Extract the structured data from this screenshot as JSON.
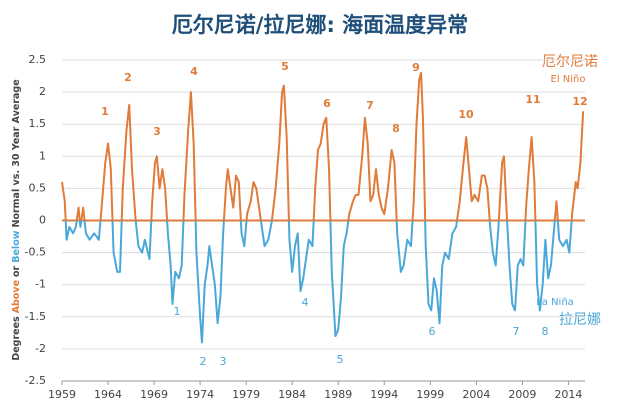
{
  "chart_data": {
    "type": "line",
    "title": "厄尔尼诺/拉尼娜: 海面温度异常",
    "y_label_parts": [
      "Degrees",
      "Above",
      "or",
      "Below",
      "Normal vs. 30 Year Average"
    ],
    "positive_label_cn": "厄尔尼诺",
    "positive_label_en": "El Niño",
    "negative_label_en": "La Niña",
    "negative_label_cn": "拉尼娜",
    "el_nino_events": [
      "1",
      "2",
      "3",
      "4",
      "5",
      "6",
      "7",
      "8",
      "9",
      "10",
      "11",
      "12"
    ],
    "la_nina_events": [
      "1",
      "2",
      "3",
      "4",
      "5",
      "6",
      "7",
      "8"
    ],
    "positive_color": "#e07b39",
    "negative_color": "#4aa8d8",
    "title_color": "#1f4e79",
    "grid": true,
    "xlim": [
      1959,
      2015.8
    ],
    "xticks": [
      1959,
      1964,
      1969,
      1974,
      1979,
      1984,
      1989,
      1994,
      1999,
      2004,
      2009,
      2014
    ],
    "ylim": [
      -2.5,
      2.5
    ],
    "yticks": [
      2.5,
      2,
      1.5,
      1,
      0.5,
      0,
      -0.5,
      -1,
      -1.5,
      -2,
      -2.5
    ],
    "x": [
      1959.0,
      1959.3,
      1959.5,
      1959.8,
      1960.2,
      1960.5,
      1960.8,
      1961.0,
      1961.3,
      1961.6,
      1962.0,
      1962.5,
      1963.0,
      1963.3,
      1963.7,
      1964.0,
      1964.3,
      1964.6,
      1965.0,
      1965.3,
      1965.6,
      1966.0,
      1966.3,
      1966.6,
      1967.0,
      1967.3,
      1967.7,
      1968.0,
      1968.5,
      1968.8,
      1969.1,
      1969.3,
      1969.6,
      1969.9,
      1970.2,
      1970.5,
      1970.8,
      1971.0,
      1971.3,
      1971.7,
      1972.0,
      1972.3,
      1972.7,
      1973.0,
      1973.3,
      1973.6,
      1974.0,
      1974.2,
      1974.5,
      1974.8,
      1975.0,
      1975.3,
      1975.6,
      1975.9,
      1976.2,
      1976.5,
      1976.8,
      1977.0,
      1977.3,
      1977.6,
      1977.9,
      1978.2,
      1978.5,
      1978.8,
      1979.1,
      1979.5,
      1979.8,
      1980.1,
      1980.4,
      1980.7,
      1981.0,
      1981.4,
      1981.8,
      1982.2,
      1982.6,
      1982.9,
      1983.1,
      1983.4,
      1983.7,
      1984.0,
      1984.3,
      1984.6,
      1984.9,
      1985.2,
      1985.5,
      1985.8,
      1986.2,
      1986.5,
      1986.8,
      1987.1,
      1987.4,
      1987.7,
      1988.0,
      1988.3,
      1988.7,
      1989.0,
      1989.3,
      1989.6,
      1989.9,
      1990.2,
      1990.6,
      1990.9,
      1991.2,
      1991.6,
      1991.9,
      1992.2,
      1992.5,
      1992.8,
      1993.1,
      1993.4,
      1993.7,
      1994.0,
      1994.4,
      1994.8,
      1995.1,
      1995.4,
      1995.8,
      1996.1,
      1996.5,
      1996.9,
      1997.2,
      1997.5,
      1997.8,
      1998.0,
      1998.2,
      1998.5,
      1998.8,
      1999.1,
      1999.4,
      1999.7,
      2000.0,
      2000.3,
      2000.6,
      2001.0,
      2001.4,
      2001.8,
      2002.2,
      2002.6,
      2002.9,
      2003.2,
      2003.5,
      2003.8,
      2004.2,
      2004.6,
      2004.9,
      2005.2,
      2005.5,
      2005.8,
      2006.1,
      2006.4,
      2006.8,
      2007.0,
      2007.3,
      2007.6,
      2007.9,
      2008.2,
      2008.5,
      2008.8,
      2009.1,
      2009.4,
      2009.7,
      2010.0,
      2010.3,
      2010.6,
      2010.9,
      2011.2,
      2011.5,
      2011.8,
      2012.1,
      2012.4,
      2012.7,
      2013.0,
      2013.4,
      2013.8,
      2014.1,
      2014.4,
      2014.8,
      2015.0,
      2015.3,
      2015.6
    ],
    "values": [
      0.6,
      0.3,
      -0.3,
      -0.1,
      -0.2,
      -0.1,
      0.2,
      -0.1,
      0.2,
      -0.2,
      -0.3,
      -0.2,
      -0.3,
      0.2,
      0.9,
      1.2,
      0.8,
      -0.5,
      -0.8,
      -0.8,
      0.5,
      1.4,
      1.8,
      0.8,
      0.0,
      -0.4,
      -0.5,
      -0.3,
      -0.6,
      0.3,
      0.9,
      1.0,
      0.5,
      0.8,
      0.5,
      -0.2,
      -0.7,
      -1.3,
      -0.8,
      -0.9,
      -0.7,
      0.4,
      1.4,
      2.0,
      1.2,
      -0.5,
      -1.5,
      -1.9,
      -1.0,
      -0.7,
      -0.4,
      -0.7,
      -1.0,
      -1.6,
      -1.2,
      -0.2,
      0.5,
      0.8,
      0.5,
      0.2,
      0.7,
      0.6,
      -0.2,
      -0.4,
      0.1,
      0.3,
      0.6,
      0.5,
      0.2,
      -0.1,
      -0.4,
      -0.3,
      0.0,
      0.5,
      1.2,
      2.0,
      2.1,
      1.3,
      -0.3,
      -0.8,
      -0.4,
      -0.2,
      -1.1,
      -0.9,
      -0.6,
      -0.3,
      -0.4,
      0.5,
      1.1,
      1.2,
      1.5,
      1.6,
      0.8,
      -0.8,
      -1.8,
      -1.7,
      -1.2,
      -0.4,
      -0.2,
      0.1,
      0.3,
      0.4,
      0.4,
      1.0,
      1.6,
      1.2,
      0.3,
      0.4,
      0.8,
      0.4,
      0.2,
      0.1,
      0.5,
      1.1,
      0.9,
      -0.2,
      -0.8,
      -0.7,
      -0.3,
      -0.4,
      0.3,
      1.5,
      2.2,
      2.3,
      1.6,
      -0.4,
      -1.3,
      -1.4,
      -0.9,
      -1.1,
      -1.6,
      -0.7,
      -0.5,
      -0.6,
      -0.2,
      -0.1,
      0.3,
      0.9,
      1.3,
      0.8,
      0.3,
      0.4,
      0.3,
      0.7,
      0.7,
      0.5,
      -0.1,
      -0.5,
      -0.7,
      -0.1,
      0.9,
      1.0,
      0.1,
      -0.7,
      -1.3,
      -1.4,
      -0.7,
      -0.6,
      -0.7,
      0.2,
      0.8,
      1.3,
      0.6,
      -1.0,
      -1.4,
      -1.0,
      -0.3,
      -0.9,
      -0.7,
      -0.2,
      0.3,
      -0.3,
      -0.4,
      -0.3,
      -0.5,
      0.1,
      0.6,
      0.5,
      0.9,
      1.7
    ]
  }
}
